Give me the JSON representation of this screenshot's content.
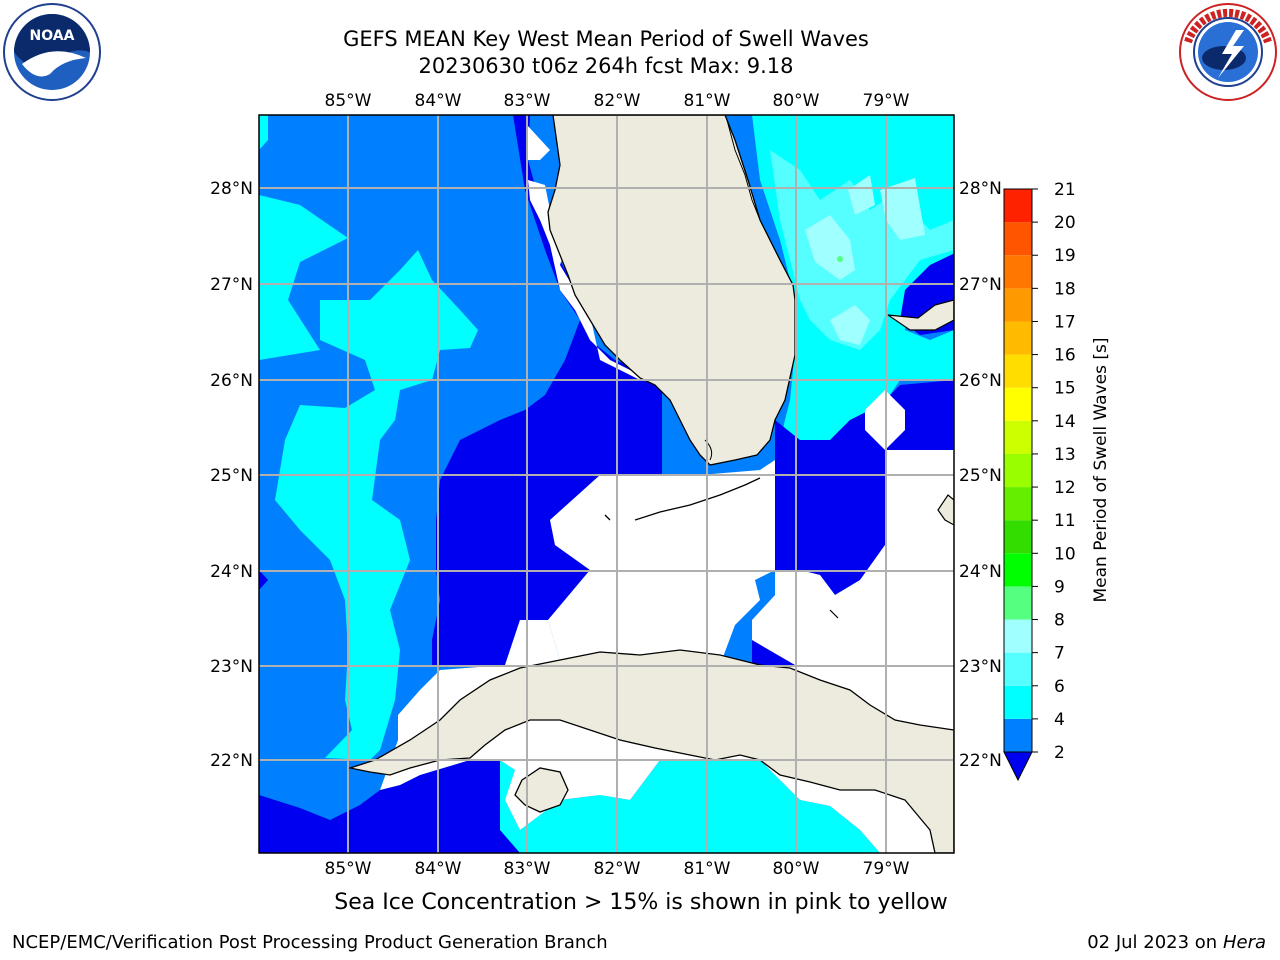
{
  "header": {
    "title_line1": "GEFS MEAN Key West Mean Period of Swell Waves",
    "title_line2": "20230630 t06z 264h fcst   Max: 9.18"
  },
  "logos": {
    "left": {
      "name": "noaa-logo",
      "text": "NOAA",
      "ring_text": "NATIONAL OCEANIC AND ATMOSPHERIC ADMINISTRATION · U.S. DEPARTMENT OF COMMERCE"
    },
    "right": {
      "name": "nws-logo",
      "ring_text": "NATIONAL WEATHER SERVICE"
    }
  },
  "map": {
    "lon_labels": [
      "85°W",
      "84°W",
      "83°W",
      "82°W",
      "81°W",
      "80°W",
      "79°W"
    ],
    "lat_labels": [
      "28°N",
      "27°N",
      "26°N",
      "25°N",
      "24°N",
      "23°N",
      "22°N"
    ],
    "extent": {
      "lon_min": -86.0,
      "lon_max": -78.25,
      "lat_min": 21.0,
      "lat_max": 28.75
    },
    "colors": {
      "land": "#ecebdd",
      "band_2_4": "#0000f0",
      "band_4_6": "#0080ff",
      "band_6_7": "#00ffff",
      "band_7_8": "#55ffff",
      "band_8_9": "#a0ffff",
      "below_min": "#ffffff",
      "grid": "#b0b0b0",
      "coast": "#000000"
    }
  },
  "colorbar": {
    "label": "Mean Period of Swell Waves [s]",
    "ticks": [
      "2",
      "4",
      "6",
      "7",
      "8",
      "9",
      "10",
      "11",
      "12",
      "13",
      "14",
      "15",
      "16",
      "17",
      "18",
      "19",
      "20",
      "21"
    ],
    "colors": [
      "#0080ff",
      "#00ffff",
      "#55ffff",
      "#a0ffff",
      "#55ff80",
      "#00ff00",
      "#33dd00",
      "#66ee00",
      "#99ff00",
      "#ccff00",
      "#ffff00",
      "#ffdd00",
      "#ffbb00",
      "#ff9900",
      "#ff7700",
      "#ff5500",
      "#ff2200",
      "#ff0000"
    ],
    "extend_color": "#0000f0"
  },
  "footer": {
    "note": "Sea Ice Concentration > 15% is shown in pink to yellow",
    "credit": "NCEP/EMC/Verification Post Processing Product Generation Branch",
    "date": "02 Jul 2023 on ",
    "host": "Hera"
  }
}
